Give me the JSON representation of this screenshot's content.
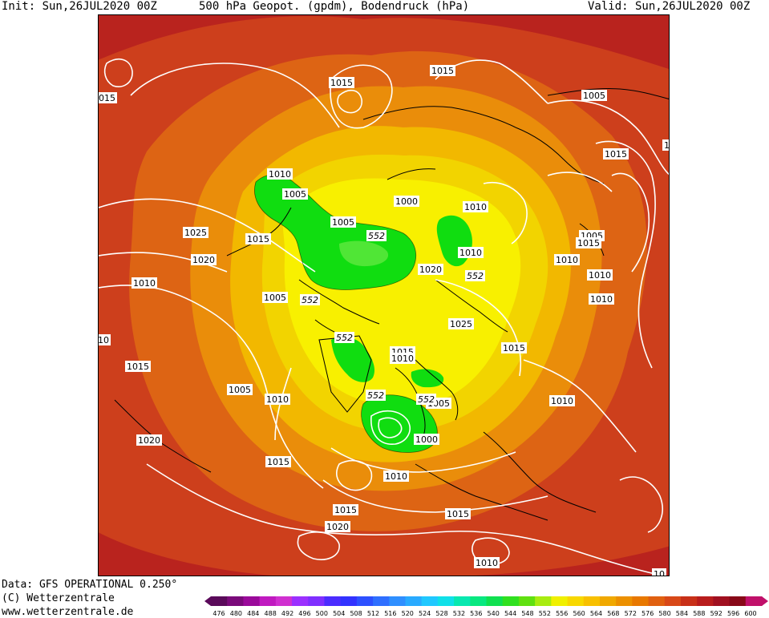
{
  "header": {
    "init": "Init: Sun,26JUL2020 00Z",
    "title": "500 hPa Geopot. (gpdm), Bodendruck (hPa)",
    "valid": "Valid: Sun,26JUL2020 00Z"
  },
  "footer": {
    "data_source": "Data: GFS OPERATIONAL 0.250°",
    "copyright": "(C) Wetterzentrale",
    "url": "www.wetterzentrale.de"
  },
  "colorbar": {
    "levels": [
      "476",
      "480",
      "484",
      "488",
      "492",
      "496",
      "500",
      "504",
      "508",
      "512",
      "516",
      "520",
      "524",
      "528",
      "532",
      "536",
      "540",
      "544",
      "548",
      "552",
      "556",
      "560",
      "564",
      "568",
      "572",
      "576",
      "580",
      "584",
      "588",
      "592",
      "596",
      "600"
    ],
    "colors": [
      "#5a0a5a",
      "#7a0a7a",
      "#9a0a9a",
      "#c01ac0",
      "#d030d0",
      "#9b30ff",
      "#7f2fff",
      "#4b2cff",
      "#3232ff",
      "#2d50ff",
      "#2f6fff",
      "#2f8fff",
      "#29aaff",
      "#20c8ff",
      "#10e0e8",
      "#08e8b0",
      "#08e880",
      "#10e050",
      "#30e020",
      "#60e010",
      "#a8ec10",
      "#f0f000",
      "#f8d800",
      "#f8c000",
      "#f0a800",
      "#ec9000",
      "#e87800",
      "#e06010",
      "#d84818",
      "#c83018",
      "#b81c1c",
      "#a01020",
      "#880818",
      "#c0106a"
    ]
  },
  "map": {
    "colors": {
      "outer": "#b9231e",
      "r584": "#cd3f1c",
      "r576": "#dd6414",
      "r568": "#ea8d0a",
      "r560": "#f2b800",
      "r556": "#f2d400",
      "r552": "#f8f000",
      "green": "#10dd10",
      "green_light": "#60e840",
      "contour": "#ffffff",
      "coast": "#000000"
    },
    "pressure_labels": [
      {
        "text": "1015"
      },
      {
        "text": "1015"
      },
      {
        "text": "015"
      },
      {
        "text": "1005"
      },
      {
        "text": "1015"
      },
      {
        "text": "1010"
      },
      {
        "text": "1005"
      },
      {
        "text": "1000"
      },
      {
        "text": "1010"
      },
      {
        "text": "1005"
      },
      {
        "text": "1025"
      },
      {
        "text": "1015"
      },
      {
        "text": "1020"
      },
      {
        "text": "1005"
      },
      {
        "text": "1010"
      },
      {
        "text": "1010"
      },
      {
        "text": "1020"
      },
      {
        "text": "1015"
      },
      {
        "text": "1010"
      },
      {
        "text": "1010"
      },
      {
        "text": "1010"
      },
      {
        "text": "1005"
      },
      {
        "text": "1025"
      },
      {
        "text": "1015"
      },
      {
        "text": "1015"
      },
      {
        "text": "1010"
      },
      {
        "text": "1015"
      },
      {
        "text": "1005"
      },
      {
        "text": "1010"
      },
      {
        "text": "1005"
      },
      {
        "text": "1000"
      },
      {
        "text": "1020"
      },
      {
        "text": "1015"
      },
      {
        "text": "1010"
      },
      {
        "text": "1015"
      },
      {
        "text": "1020"
      },
      {
        "text": "1015"
      },
      {
        "text": "1010"
      },
      {
        "text": "1010"
      },
      {
        "text": "10"
      },
      {
        "text": "1"
      },
      {
        "text": "10"
      }
    ],
    "height_labels": [
      {
        "text": "552"
      },
      {
        "text": "552"
      },
      {
        "text": "552"
      },
      {
        "text": "552"
      },
      {
        "text": "552"
      },
      {
        "text": "552"
      }
    ]
  }
}
